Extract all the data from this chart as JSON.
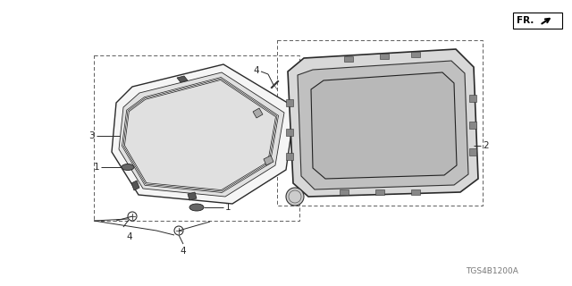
{
  "background_color": "#ffffff",
  "line_color": "#2a2a2a",
  "text_color": "#2a2a2a",
  "fr_label": "FR.",
  "diagram_code": "TGS4B1200A",
  "fig_width": 6.4,
  "fig_height": 3.2,
  "dpi": 100,
  "labels": {
    "1a": [
      "1",
      113,
      187
    ],
    "1b": [
      "1",
      216,
      231
    ],
    "2": [
      "2",
      536,
      163
    ],
    "3": [
      "3",
      108,
      152
    ],
    "4a": [
      "4",
      307,
      86
    ],
    "4b": [
      "4",
      133,
      248
    ],
    "4c": [
      "4",
      203,
      263
    ]
  }
}
